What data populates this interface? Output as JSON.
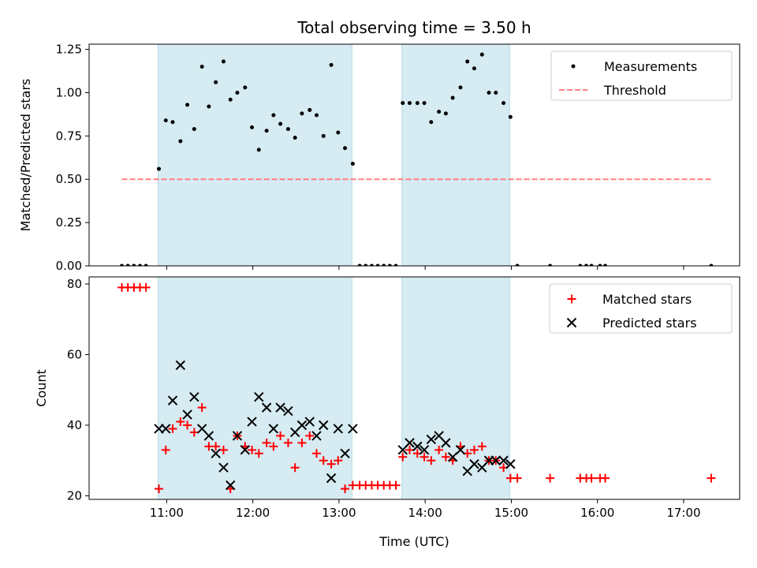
{
  "chart_data": [
    {
      "type": "scatter",
      "title": "Total observing time = 3.50 h",
      "ylabel": "Matched/Predicted stars",
      "xlabel": "",
      "xlim": [
        10.1,
        17.65
      ],
      "ylim": [
        0,
        1.28
      ],
      "yticks": [
        0.0,
        0.25,
        0.5,
        0.75,
        1.0,
        1.25
      ],
      "ytick_labels": [
        "0.00",
        "0.25",
        "0.50",
        "0.75",
        "1.00",
        "1.25"
      ],
      "xticks": [
        11,
        12,
        13,
        14,
        15,
        16,
        17
      ],
      "shaded_intervals": [
        [
          10.9,
          13.15
        ],
        [
          13.73,
          14.98
        ]
      ],
      "legend_position": "top-right",
      "series": [
        {
          "name": "Measurements",
          "color": "#000000",
          "marker": "dot",
          "points": [
            [
              10.48,
              0
            ],
            [
              10.55,
              0
            ],
            [
              10.62,
              0
            ],
            [
              10.69,
              0
            ],
            [
              10.76,
              0
            ],
            [
              10.91,
              0.56
            ],
            [
              10.99,
              0.84
            ],
            [
              11.07,
              0.83
            ],
            [
              11.16,
              0.72
            ],
            [
              11.24,
              0.93
            ],
            [
              11.32,
              0.79
            ],
            [
              11.41,
              1.15
            ],
            [
              11.49,
              0.92
            ],
            [
              11.57,
              1.06
            ],
            [
              11.66,
              1.18
            ],
            [
              11.74,
              0.96
            ],
            [
              11.82,
              1.0
            ],
            [
              11.91,
              1.03
            ],
            [
              11.99,
              0.8
            ],
            [
              12.07,
              0.67
            ],
            [
              12.16,
              0.78
            ],
            [
              12.24,
              0.87
            ],
            [
              12.32,
              0.82
            ],
            [
              12.41,
              0.79
            ],
            [
              12.49,
              0.74
            ],
            [
              12.57,
              0.88
            ],
            [
              12.66,
              0.9
            ],
            [
              12.74,
              0.87
            ],
            [
              12.82,
              0.75
            ],
            [
              12.91,
              1.16
            ],
            [
              12.99,
              0.77
            ],
            [
              13.07,
              0.68
            ],
            [
              13.16,
              0.59
            ],
            [
              13.24,
              0
            ],
            [
              13.31,
              0
            ],
            [
              13.38,
              0
            ],
            [
              13.45,
              0
            ],
            [
              13.52,
              0
            ],
            [
              13.59,
              0
            ],
            [
              13.66,
              0
            ],
            [
              13.74,
              0.94
            ],
            [
              13.82,
              0.94
            ],
            [
              13.91,
              0.94
            ],
            [
              13.99,
              0.94
            ],
            [
              14.07,
              0.83
            ],
            [
              14.16,
              0.89
            ],
            [
              14.24,
              0.88
            ],
            [
              14.32,
              0.97
            ],
            [
              14.41,
              1.03
            ],
            [
              14.49,
              1.18
            ],
            [
              14.57,
              1.14
            ],
            [
              14.66,
              1.22
            ],
            [
              14.74,
              1.0
            ],
            [
              14.82,
              1.0
            ],
            [
              14.91,
              0.94
            ],
            [
              14.99,
              0.86
            ],
            [
              15.07,
              0
            ],
            [
              15.45,
              0
            ],
            [
              15.8,
              0
            ],
            [
              15.87,
              0
            ],
            [
              15.93,
              0
            ],
            [
              16.03,
              0
            ],
            [
              16.09,
              0
            ],
            [
              17.32,
              0
            ]
          ]
        },
        {
          "name": "Threshold",
          "color": "#ff7f7f",
          "style": "dashed",
          "points": [
            [
              10.48,
              0.5
            ],
            [
              17.32,
              0.5
            ]
          ]
        }
      ]
    },
    {
      "type": "scatter",
      "title": "",
      "xlabel": "Time (UTC)",
      "ylabel": "Count",
      "xlim": [
        10.1,
        17.65
      ],
      "ylim": [
        19,
        82
      ],
      "yticks": [
        20,
        40,
        60,
        80
      ],
      "ytick_labels": [
        "20",
        "40",
        "60",
        "80"
      ],
      "xticks": [
        11,
        12,
        13,
        14,
        15,
        16,
        17
      ],
      "xtick_labels": [
        "11:00",
        "12:00",
        "13:00",
        "14:00",
        "15:00",
        "16:00",
        "17:00"
      ],
      "shaded_intervals": [
        [
          10.9,
          13.15
        ],
        [
          13.73,
          14.98
        ]
      ],
      "legend_position": "top-right",
      "series": [
        {
          "name": "Matched stars",
          "color": "#ff0000",
          "marker": "plus",
          "points": [
            [
              10.48,
              79
            ],
            [
              10.55,
              79
            ],
            [
              10.62,
              79
            ],
            [
              10.69,
              79
            ],
            [
              10.76,
              79
            ],
            [
              10.91,
              22
            ],
            [
              10.99,
              33
            ],
            [
              11.07,
              39
            ],
            [
              11.16,
              41
            ],
            [
              11.24,
              40
            ],
            [
              11.32,
              38
            ],
            [
              11.41,
              45
            ],
            [
              11.49,
              34
            ],
            [
              11.57,
              34
            ],
            [
              11.66,
              33
            ],
            [
              11.74,
              22
            ],
            [
              11.82,
              37
            ],
            [
              11.91,
              34
            ],
            [
              11.99,
              33
            ],
            [
              12.07,
              32
            ],
            [
              12.16,
              35
            ],
            [
              12.24,
              34
            ],
            [
              12.32,
              37
            ],
            [
              12.41,
              35
            ],
            [
              12.49,
              28
            ],
            [
              12.57,
              35
            ],
            [
              12.66,
              37
            ],
            [
              12.74,
              32
            ],
            [
              12.82,
              30
            ],
            [
              12.91,
              29
            ],
            [
              12.99,
              30
            ],
            [
              13.07,
              22
            ],
            [
              13.16,
              23
            ],
            [
              13.24,
              23
            ],
            [
              13.31,
              23
            ],
            [
              13.38,
              23
            ],
            [
              13.45,
              23
            ],
            [
              13.52,
              23
            ],
            [
              13.59,
              23
            ],
            [
              13.66,
              23
            ],
            [
              13.74,
              31
            ],
            [
              13.82,
              33
            ],
            [
              13.91,
              32
            ],
            [
              13.99,
              31
            ],
            [
              14.07,
              30
            ],
            [
              14.16,
              33
            ],
            [
              14.24,
              31
            ],
            [
              14.32,
              30
            ],
            [
              14.41,
              34
            ],
            [
              14.49,
              32
            ],
            [
              14.57,
              33
            ],
            [
              14.66,
              34
            ],
            [
              14.74,
              30
            ],
            [
              14.82,
              30
            ],
            [
              14.91,
              28
            ],
            [
              14.99,
              25
            ],
            [
              15.07,
              25
            ],
            [
              15.45,
              25
            ],
            [
              15.8,
              25
            ],
            [
              15.87,
              25
            ],
            [
              15.93,
              25
            ],
            [
              16.03,
              25
            ],
            [
              16.09,
              25
            ],
            [
              17.32,
              25
            ]
          ]
        },
        {
          "name": "Predicted stars",
          "color": "#000000",
          "marker": "x",
          "points": [
            [
              10.91,
              39
            ],
            [
              10.99,
              39
            ],
            [
              11.07,
              47
            ],
            [
              11.16,
              57
            ],
            [
              11.24,
              43
            ],
            [
              11.32,
              48
            ],
            [
              11.41,
              39
            ],
            [
              11.49,
              37
            ],
            [
              11.57,
              32
            ],
            [
              11.66,
              28
            ],
            [
              11.74,
              23
            ],
            [
              11.82,
              37
            ],
            [
              11.91,
              33
            ],
            [
              11.99,
              41
            ],
            [
              12.07,
              48
            ],
            [
              12.16,
              45
            ],
            [
              12.24,
              39
            ],
            [
              12.32,
              45
            ],
            [
              12.41,
              44
            ],
            [
              12.49,
              38
            ],
            [
              12.57,
              40
            ],
            [
              12.66,
              41
            ],
            [
              12.74,
              37
            ],
            [
              12.82,
              40
            ],
            [
              12.91,
              25
            ],
            [
              12.99,
              39
            ],
            [
              13.07,
              32
            ],
            [
              13.16,
              39
            ],
            [
              13.74,
              33
            ],
            [
              13.82,
              35
            ],
            [
              13.91,
              34
            ],
            [
              13.99,
              33
            ],
            [
              14.07,
              36
            ],
            [
              14.16,
              37
            ],
            [
              14.24,
              35
            ],
            [
              14.32,
              31
            ],
            [
              14.41,
              33
            ],
            [
              14.49,
              27
            ],
            [
              14.57,
              29
            ],
            [
              14.66,
              28
            ],
            [
              14.74,
              30
            ],
            [
              14.82,
              30
            ],
            [
              14.91,
              30
            ],
            [
              14.99,
              29
            ]
          ]
        }
      ]
    }
  ]
}
